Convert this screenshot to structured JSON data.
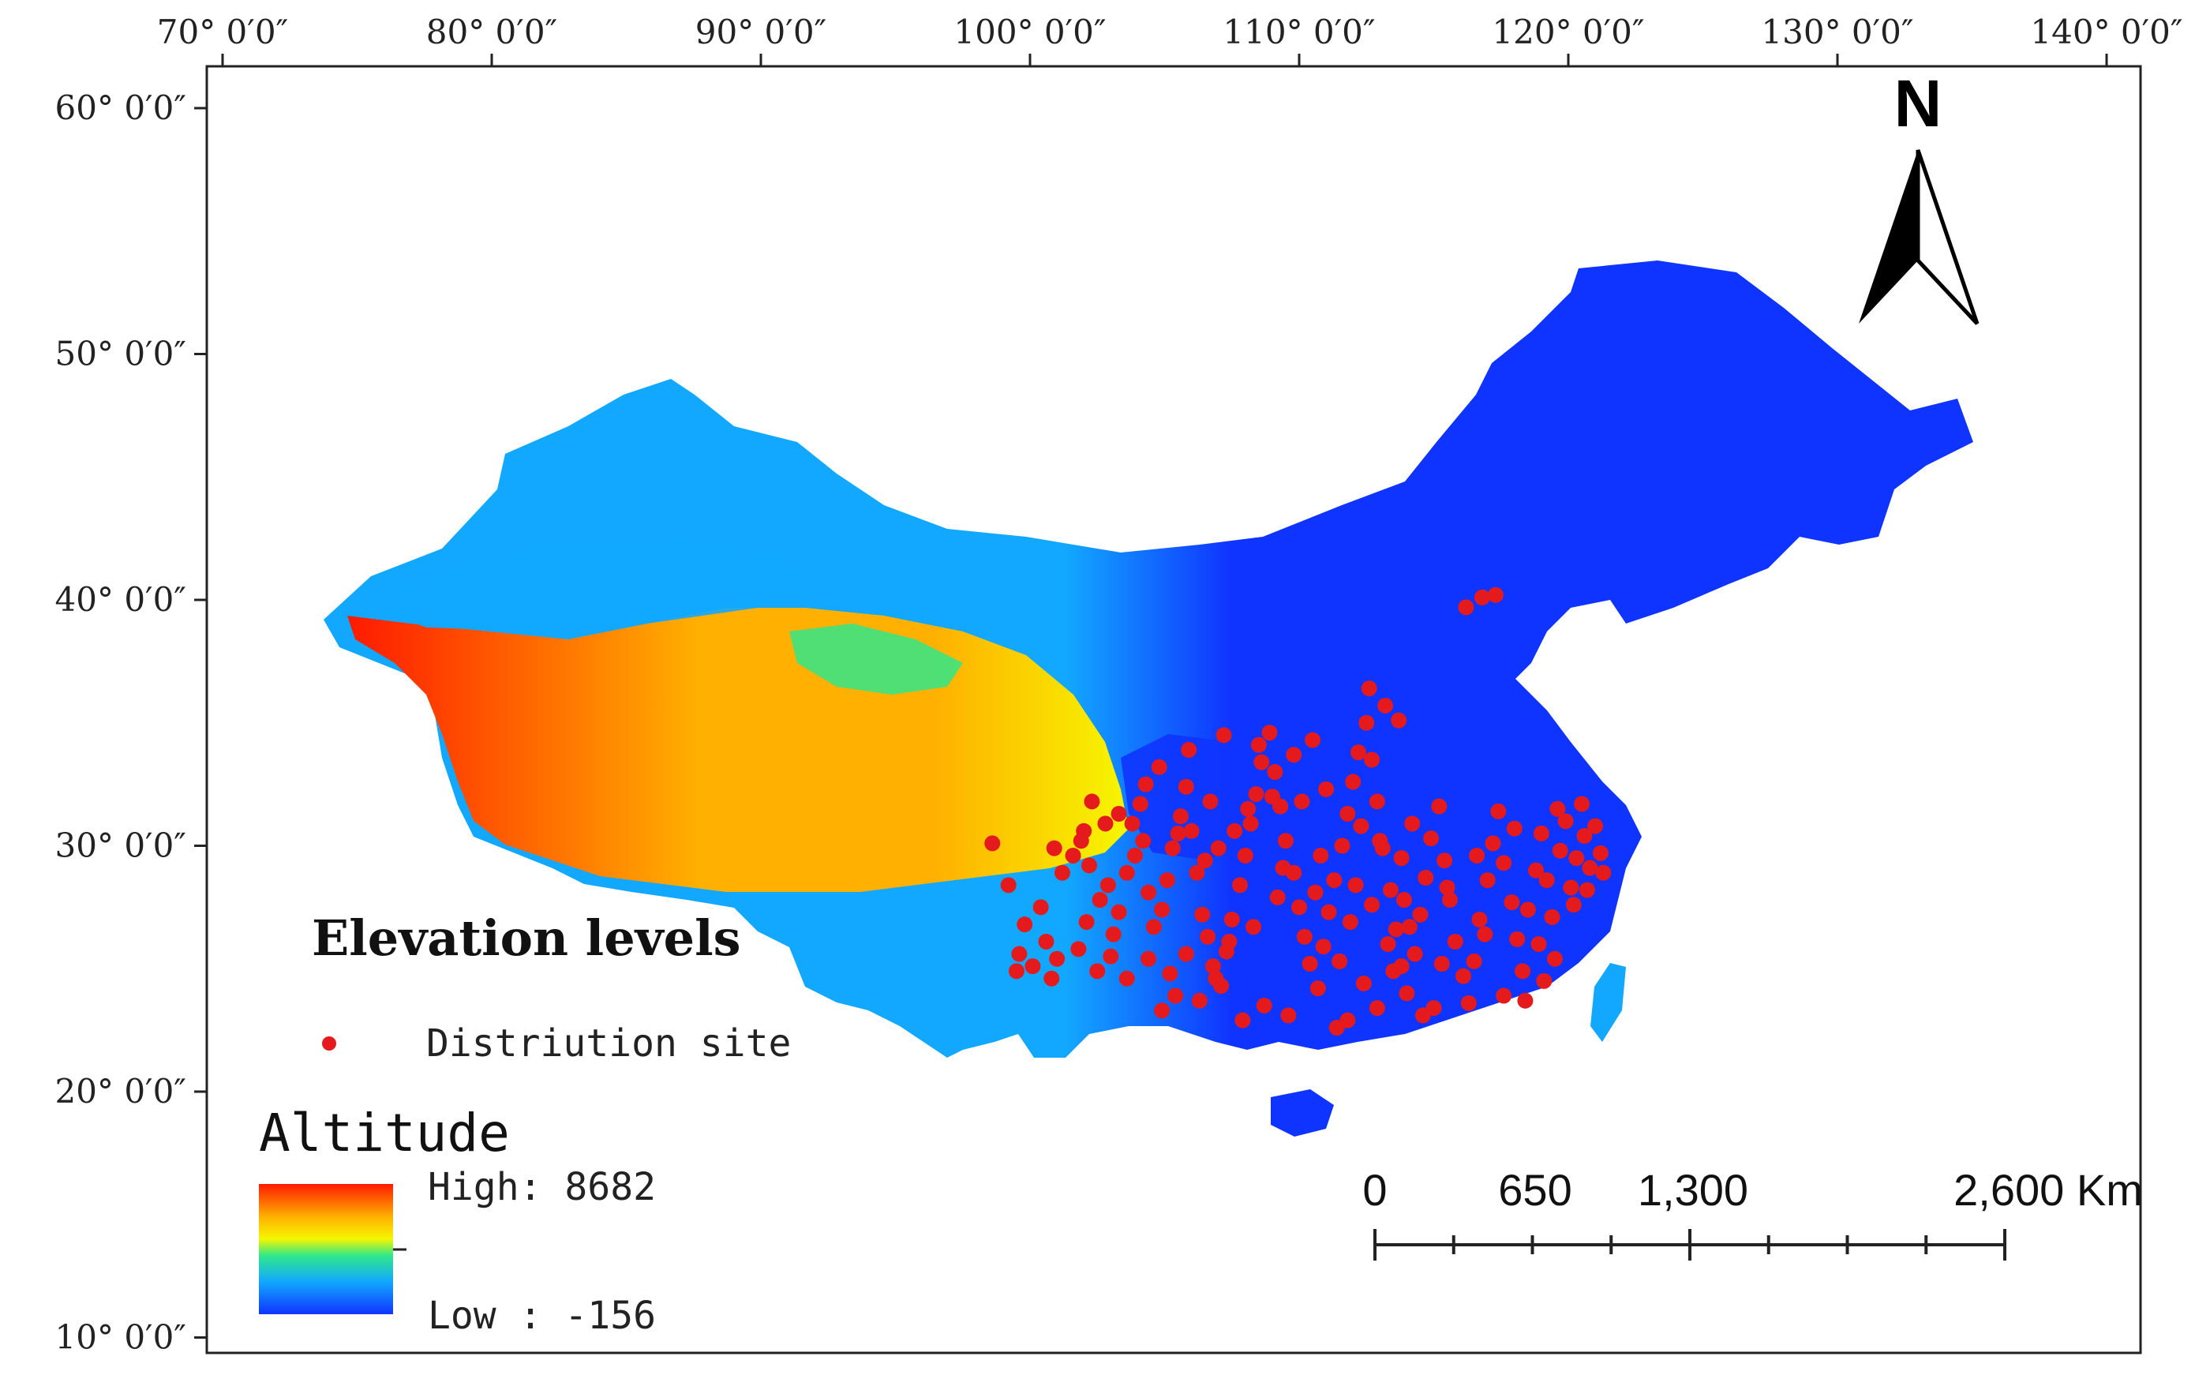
{
  "map": {
    "lon_labels": [
      "70° 0′0″",
      "80° 0′0″",
      "90° 0′0″",
      "100° 0′0″",
      "110° 0′0″",
      "120° 0′0″",
      "130° 0′0″",
      "140° 0′0″"
    ],
    "lat_labels": [
      "60° 0′0″",
      "50° 0′0″",
      "40° 0′0″",
      "30° 0′0″",
      "20° 0′0″",
      "10° 0′0″"
    ],
    "north_label": "N",
    "colors": {
      "high": "#ff1a00",
      "mid_high": "#ffb000",
      "mid": "#f6f600",
      "mid_low": "#30e88a",
      "low_mid": "#12a8ff",
      "low": "#1034ff",
      "site": "#e41a1c"
    }
  },
  "legend": {
    "title": "Elevation levels",
    "site_label": "Distriution site",
    "altitude_title": "Altitude",
    "high_label": "High: 8682",
    "low_label": "Low : -156"
  },
  "scale_bar": {
    "labels": [
      "0",
      "650",
      "1,300",
      "2,600 Km"
    ]
  },
  "sites": [
    [
      98.6,
      30.1
    ],
    [
      99.2,
      28.4
    ],
    [
      99.8,
      26.8
    ],
    [
      100.4,
      27.5
    ],
    [
      100.6,
      26.1
    ],
    [
      101.0,
      25.4
    ],
    [
      101.2,
      28.9
    ],
    [
      101.6,
      29.6
    ],
    [
      102.0,
      30.6
    ],
    [
      102.2,
      29.2
    ],
    [
      102.6,
      27.8
    ],
    [
      102.9,
      28.4
    ],
    [
      103.1,
      26.4
    ],
    [
      103.3,
      27.3
    ],
    [
      103.6,
      28.9
    ],
    [
      103.9,
      29.6
    ],
    [
      104.2,
      30.2
    ],
    [
      104.4,
      28.1
    ],
    [
      104.6,
      26.7
    ],
    [
      104.9,
      27.4
    ],
    [
      105.1,
      28.6
    ],
    [
      105.3,
      29.9
    ],
    [
      105.6,
      31.2
    ],
    [
      105.8,
      32.4
    ],
    [
      106.0,
      30.6
    ],
    [
      106.2,
      28.9
    ],
    [
      106.4,
      27.2
    ],
    [
      106.6,
      26.3
    ],
    [
      106.8,
      25.1
    ],
    [
      107.1,
      24.3
    ],
    [
      107.3,
      25.7
    ],
    [
      107.5,
      27.0
    ],
    [
      107.8,
      28.4
    ],
    [
      108.0,
      29.6
    ],
    [
      108.2,
      30.9
    ],
    [
      108.4,
      32.1
    ],
    [
      108.6,
      33.4
    ],
    [
      108.9,
      34.6
    ],
    [
      109.1,
      33.0
    ],
    [
      109.3,
      31.6
    ],
    [
      109.5,
      30.2
    ],
    [
      109.8,
      28.9
    ],
    [
      110.0,
      27.5
    ],
    [
      110.2,
      26.3
    ],
    [
      110.4,
      25.2
    ],
    [
      110.7,
      24.2
    ],
    [
      110.9,
      25.9
    ],
    [
      111.1,
      27.3
    ],
    [
      111.3,
      28.6
    ],
    [
      111.6,
      30.0
    ],
    [
      111.8,
      31.3
    ],
    [
      112.0,
      32.6
    ],
    [
      112.2,
      33.8
    ],
    [
      112.5,
      35.0
    ],
    [
      112.7,
      33.5
    ],
    [
      112.9,
      31.8
    ],
    [
      113.1,
      29.9
    ],
    [
      113.4,
      28.2
    ],
    [
      113.6,
      26.6
    ],
    [
      113.8,
      25.1
    ],
    [
      114.0,
      24.0
    ],
    [
      114.3,
      25.6
    ],
    [
      114.5,
      27.2
    ],
    [
      114.7,
      28.7
    ],
    [
      114.9,
      30.3
    ],
    [
      115.2,
      31.6
    ],
    [
      115.4,
      29.4
    ],
    [
      115.6,
      27.8
    ],
    [
      115.8,
      26.1
    ],
    [
      116.1,
      24.7
    ],
    [
      116.3,
      23.6
    ],
    [
      116.5,
      25.3
    ],
    [
      116.7,
      27.0
    ],
    [
      117.0,
      28.6
    ],
    [
      117.2,
      30.1
    ],
    [
      117.4,
      31.4
    ],
    [
      117.6,
      29.3
    ],
    [
      117.9,
      27.7
    ],
    [
      118.1,
      26.2
    ],
    [
      118.3,
      24.9
    ],
    [
      118.5,
      27.4
    ],
    [
      118.8,
      29.0
    ],
    [
      119.0,
      30.5
    ],
    [
      119.2,
      28.6
    ],
    [
      119.4,
      27.1
    ],
    [
      119.7,
      29.8
    ],
    [
      119.9,
      31.0
    ],
    [
      120.1,
      28.3
    ],
    [
      120.3,
      29.5
    ],
    [
      120.6,
      30.4
    ],
    [
      120.8,
      29.1
    ],
    [
      121.0,
      30.8
    ],
    [
      121.2,
      29.7
    ],
    [
      116.2,
      39.7
    ],
    [
      116.8,
      40.1
    ],
    [
      117.3,
      40.2
    ],
    [
      112.6,
      36.4
    ],
    [
      113.2,
      35.7
    ],
    [
      113.7,
      35.1
    ],
    [
      104.8,
      33.2
    ],
    [
      105.9,
      33.9
    ],
    [
      107.2,
      34.5
    ],
    [
      108.5,
      34.1
    ],
    [
      109.8,
      33.7
    ],
    [
      110.5,
      34.3
    ],
    [
      103.8,
      30.9
    ],
    [
      104.1,
      31.7
    ],
    [
      102.8,
      30.9
    ],
    [
      101.9,
      30.2
    ],
    [
      100.9,
      29.9
    ],
    [
      106.9,
      24.6
    ],
    [
      108.7,
      23.5
    ],
    [
      111.8,
      22.9
    ],
    [
      112.4,
      24.4
    ],
    [
      113.5,
      24.9
    ],
    [
      115.0,
      23.4
    ],
    [
      105.4,
      23.9
    ],
    [
      105.2,
      24.8
    ],
    [
      104.9,
      23.3
    ],
    [
      105.8,
      25.6
    ],
    [
      106.3,
      23.7
    ],
    [
      107.9,
      22.9
    ],
    [
      109.6,
      23.1
    ],
    [
      111.4,
      22.6
    ],
    [
      112.9,
      23.4
    ],
    [
      114.6,
      23.1
    ],
    [
      117.6,
      23.9
    ],
    [
      118.4,
      23.7
    ],
    [
      119.1,
      24.5
    ],
    [
      106.5,
      29.4
    ],
    [
      107.0,
      29.9
    ],
    [
      107.6,
      30.6
    ],
    [
      108.1,
      31.5
    ],
    [
      109.0,
      32.0
    ],
    [
      110.1,
      31.8
    ],
    [
      111.0,
      32.3
    ],
    [
      112.3,
      30.8
    ],
    [
      113.0,
      30.2
    ],
    [
      113.8,
      29.5
    ],
    [
      114.2,
      30.9
    ],
    [
      104.4,
      25.4
    ],
    [
      103.6,
      24.6
    ],
    [
      102.5,
      24.9
    ],
    [
      101.8,
      25.8
    ],
    [
      100.1,
      25.1
    ],
    [
      100.8,
      24.6
    ],
    [
      99.6,
      25.6
    ],
    [
      99.5,
      24.9
    ],
    [
      102.1,
      26.9
    ],
    [
      103.0,
      25.5
    ],
    [
      107.4,
      26.1
    ],
    [
      108.3,
      26.7
    ],
    [
      109.2,
      27.9
    ],
    [
      110.6,
      28.1
    ],
    [
      111.9,
      26.9
    ],
    [
      112.7,
      27.6
    ],
    [
      113.3,
      26.0
    ],
    [
      114.1,
      26.7
    ],
    [
      115.3,
      25.2
    ],
    [
      116.9,
      26.4
    ],
    [
      118.9,
      26.0
    ],
    [
      119.5,
      25.4
    ],
    [
      120.2,
      27.6
    ],
    [
      120.7,
      28.2
    ],
    [
      121.3,
      28.9
    ],
    [
      106.7,
      31.8
    ],
    [
      105.5,
      30.5
    ],
    [
      104.3,
      32.5
    ],
    [
      103.3,
      31.3
    ],
    [
      102.3,
      31.8
    ],
    [
      109.4,
      29.1
    ],
    [
      110.8,
      29.6
    ],
    [
      111.5,
      25.3
    ],
    [
      112.1,
      28.4
    ],
    [
      113.9,
      27.8
    ],
    [
      115.5,
      28.3
    ],
    [
      116.6,
      29.6
    ],
    [
      118.0,
      30.7
    ],
    [
      119.6,
      31.5
    ],
    [
      120.5,
      31.7
    ]
  ]
}
